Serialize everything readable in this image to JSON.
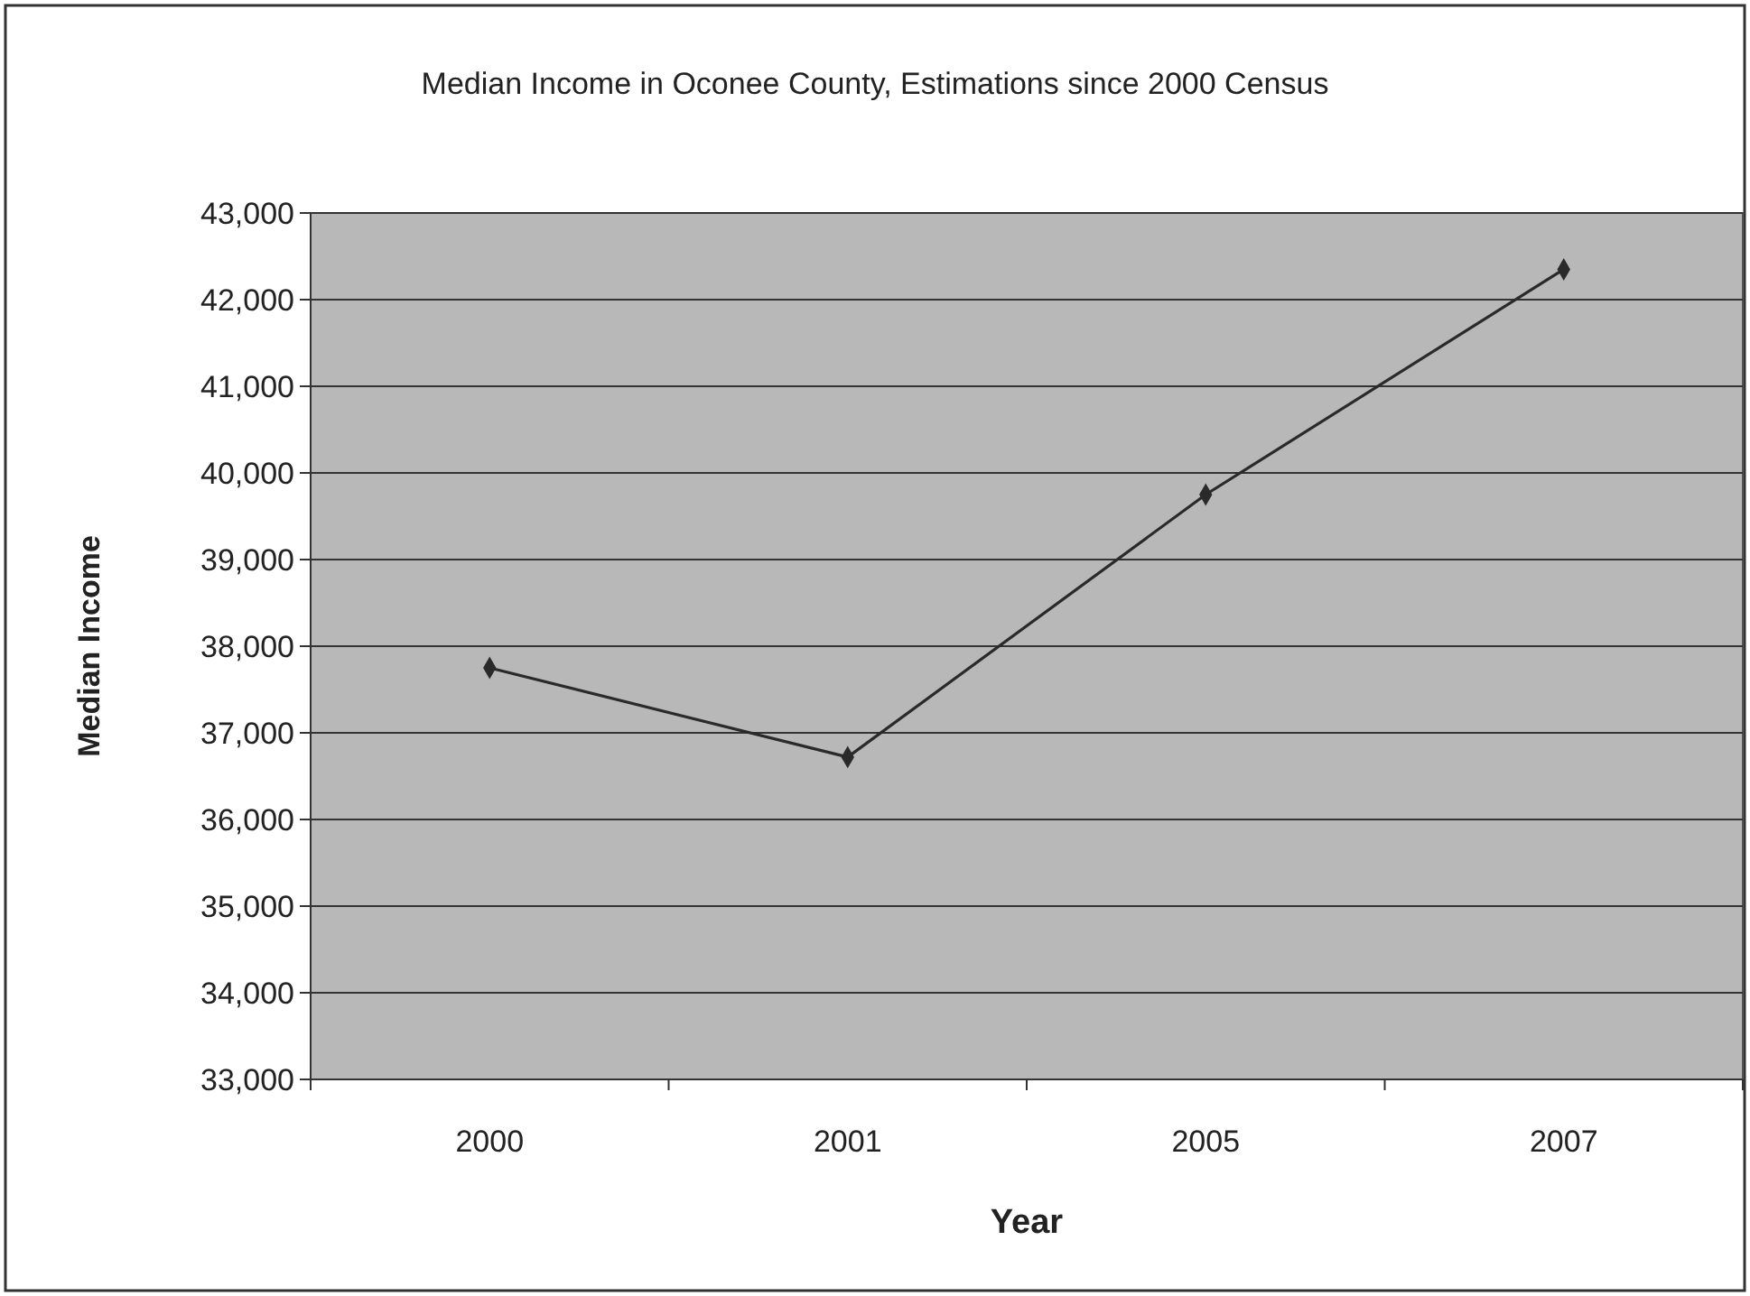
{
  "chart_data": {
    "type": "line",
    "title": "Median Income in Oconee County, Estimations since 2000 Census",
    "xlabel": "Year",
    "ylabel": "Median Income",
    "categories": [
      "2000",
      "2001",
      "2005",
      "2007"
    ],
    "series": [
      {
        "color": "#2a2a2a",
        "values": [
          37750,
          36720,
          39750,
          42350
        ]
      }
    ],
    "ylim": [
      33000,
      43000
    ],
    "yticks": [
      {
        "value": 33000,
        "label": "33,000"
      },
      {
        "value": 34000,
        "label": "34,000"
      },
      {
        "value": 35000,
        "label": "35,000"
      },
      {
        "value": 36000,
        "label": "36,000"
      },
      {
        "value": 37000,
        "label": "37,000"
      },
      {
        "value": 38000,
        "label": "38,000"
      },
      {
        "value": 39000,
        "label": "39,000"
      },
      {
        "value": 40000,
        "label": "40,000"
      },
      {
        "value": 41000,
        "label": "41,000"
      },
      {
        "value": 42000,
        "label": "42,000"
      },
      {
        "value": 43000,
        "label": "43,000"
      }
    ],
    "grid": "y",
    "marker": "diamond",
    "line_style": "solid"
  }
}
